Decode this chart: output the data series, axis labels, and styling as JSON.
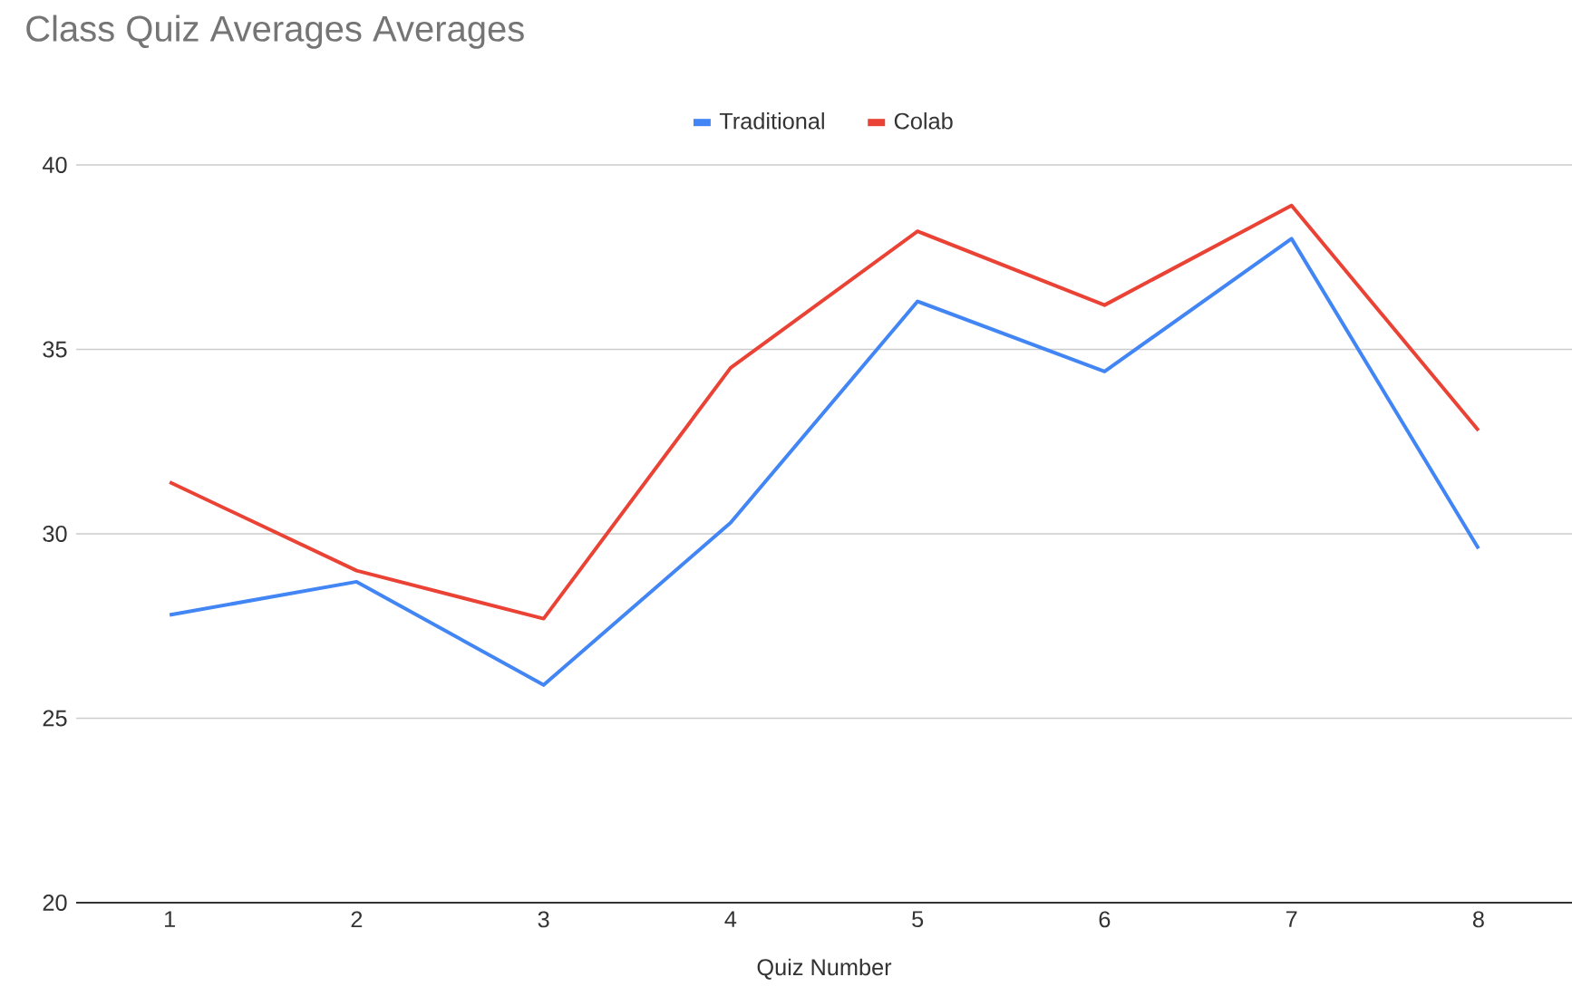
{
  "chart_data": {
    "type": "line",
    "title": "Class Quiz Averages Averages",
    "xlabel": "Quiz Number",
    "categories": [
      "1",
      "2",
      "3",
      "4",
      "5",
      "6",
      "7",
      "8"
    ],
    "series": [
      {
        "name": "Traditional",
        "color": "#4285f4",
        "values": [
          27.8,
          28.7,
          25.9,
          30.3,
          36.3,
          34.4,
          38.0,
          29.6
        ]
      },
      {
        "name": "Colab",
        "color": "#ea4335",
        "values": [
          31.4,
          29.0,
          27.7,
          34.5,
          38.2,
          36.2,
          38.9,
          32.8
        ]
      }
    ],
    "ylim": [
      20,
      40
    ],
    "yticks": [
      20,
      25,
      30,
      35,
      40
    ],
    "grid": "y",
    "legend": "top",
    "marker": "none",
    "line_style": "solid"
  }
}
